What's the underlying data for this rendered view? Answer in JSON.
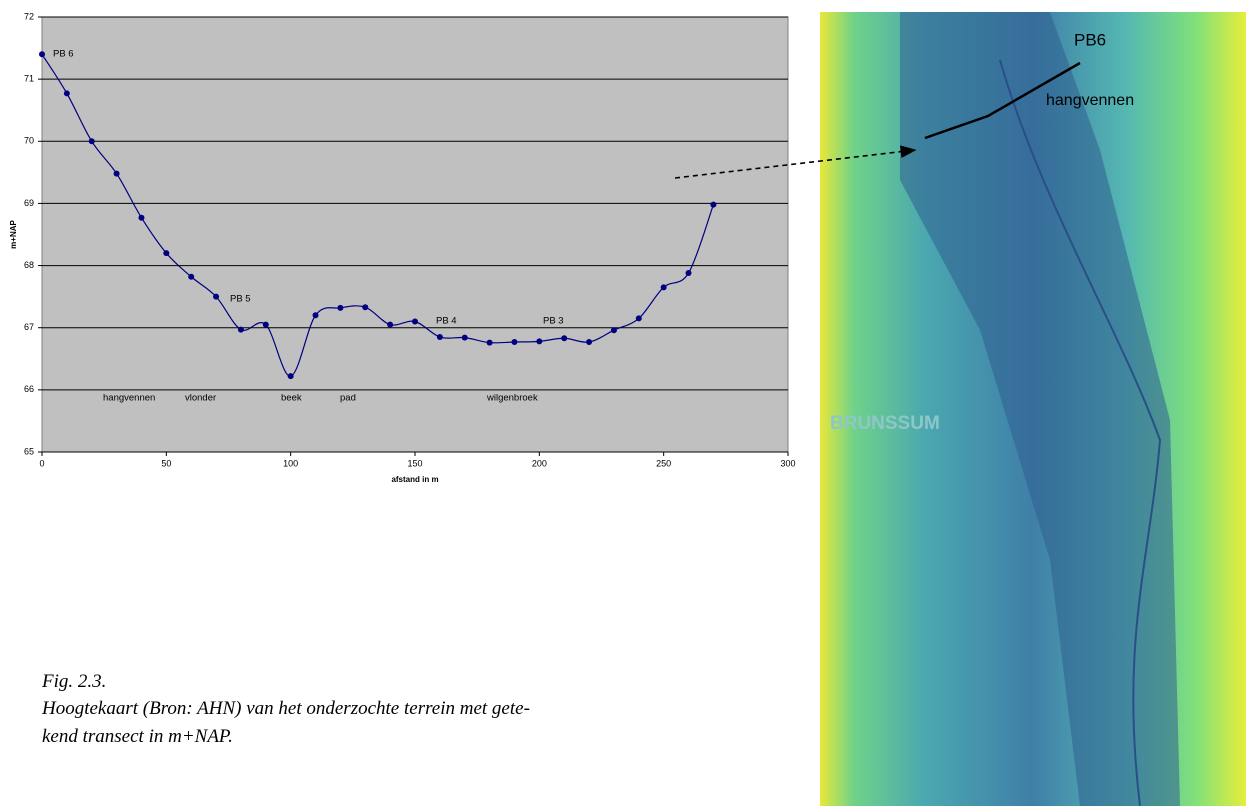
{
  "chart_data": {
    "type": "line",
    "y_label": "m+NAP",
    "x_label": "afstand in m",
    "x": [
      0,
      10,
      20,
      30,
      40,
      50,
      60,
      70,
      80,
      90,
      100,
      110,
      120,
      130,
      140,
      150,
      160,
      170,
      180,
      190,
      200,
      210,
      220,
      230,
      240,
      250,
      260,
      270
    ],
    "series": [
      {
        "color": "#000080",
        "values": [
          71.4,
          70.77,
          70.0,
          69.48,
          68.77,
          68.2,
          67.82,
          67.5,
          66.97,
          67.05,
          66.22,
          67.2,
          67.32,
          67.33,
          67.05,
          67.1,
          66.85,
          66.84,
          66.76,
          66.77,
          66.78,
          66.83,
          66.77,
          66.96,
          67.15,
          67.65,
          67.88,
          68.98
        ]
      }
    ],
    "xlim": [
      0,
      300
    ],
    "xticks": [
      0,
      50,
      100,
      150,
      200,
      250,
      300
    ],
    "ylim": [
      65,
      72
    ],
    "yticks": [
      65,
      66,
      67,
      68,
      69,
      70,
      71,
      72
    ],
    "grid": true,
    "background": "#c0c0c0",
    "annotations": [
      "PB 6",
      "PB 5",
      "PB 4",
      "PB 3",
      "hangvennen",
      "vlonder",
      "beek",
      "pad",
      "wilgenbroek"
    ]
  },
  "map": {
    "labels": [
      "PB6",
      "hangvennen",
      "BRUNSSUM"
    ]
  },
  "caption": {
    "figure": "Fig. 2.3.",
    "lines": [
      "Hoogtekaart (Bron: AHN) van het onderzochte terrein met gete-",
      "kend transect in m+NAP."
    ]
  }
}
